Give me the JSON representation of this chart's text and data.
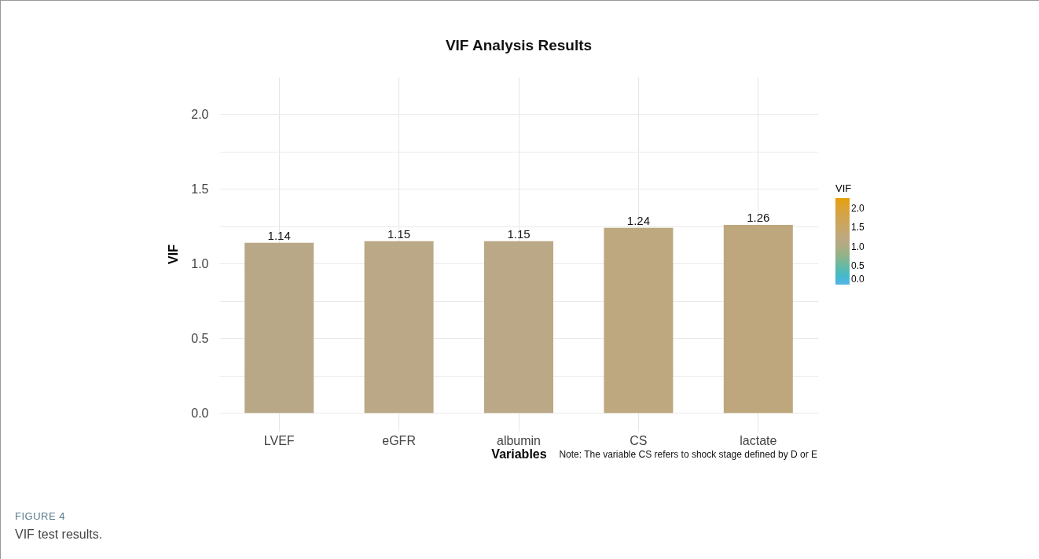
{
  "chart_data": {
    "type": "bar",
    "title": "VIF Analysis Results",
    "xlabel": "Variables",
    "ylabel": "VIF",
    "clabel": "VIF",
    "categories": [
      "LVEF",
      "eGFR",
      "albumin",
      "CS",
      "lactate"
    ],
    "values": [
      1.14,
      1.15,
      1.15,
      1.24,
      1.26
    ],
    "clim": [
      0,
      2.27
    ],
    "cticks": [
      {
        "value": 0,
        "label": "0.0"
      },
      0.5,
      {
        "value": 1,
        "label": "1.0"
      },
      1.5,
      {
        "value": 2,
        "label": "2.0"
      }
    ],
    "ylim": [
      -0.12,
      2.25
    ],
    "yticks": [
      {
        "value": 0,
        "label": "0.0"
      },
      {
        "value": 0.25,
        "label": null
      },
      {
        "value": 0.5,
        "label": "0.5"
      },
      {
        "value": 0.75,
        "label": null
      },
      {
        "value": 1,
        "label": "1.0"
      },
      {
        "value": 1.25,
        "label": null
      },
      {
        "value": 1.5,
        "label": "1.5"
      },
      {
        "value": 1.75,
        "label": null
      },
      {
        "value": 2,
        "label": "2.0"
      }
    ],
    "grid": true,
    "data_labels": true,
    "annotations": [
      "Note: The variable CS refers to shock stage defined by D or E",
      "FIGURE 4",
      "VIF test results."
    ]
  }
}
